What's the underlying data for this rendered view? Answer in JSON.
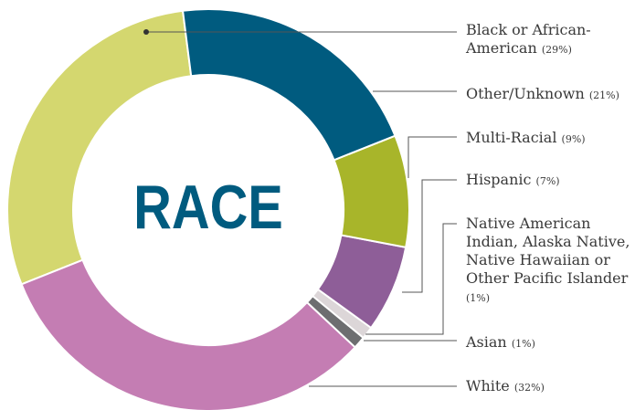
{
  "chart_data": {
    "type": "pie",
    "title": "RACE",
    "categories": [
      "Other/Unknown",
      "Multi-Racial",
      "Hispanic",
      "Native American Indian, Alaska Native, Native Hawaiian or Other Pacific Islander",
      "Asian",
      "White",
      "Black or African-American"
    ],
    "values": [
      21,
      9,
      7,
      1,
      1,
      32,
      29
    ],
    "value_labels": [
      "(21%)",
      "(9%)",
      "(7%)",
      "(1%)",
      "(1%)",
      "(32%)",
      "(29%)"
    ],
    "colors": [
      "#005b7f",
      "#a8b52a",
      "#8e5e98",
      "#dcd6d8",
      "#6d6e70",
      "#c47db3",
      "#d4d76f"
    ]
  }
}
